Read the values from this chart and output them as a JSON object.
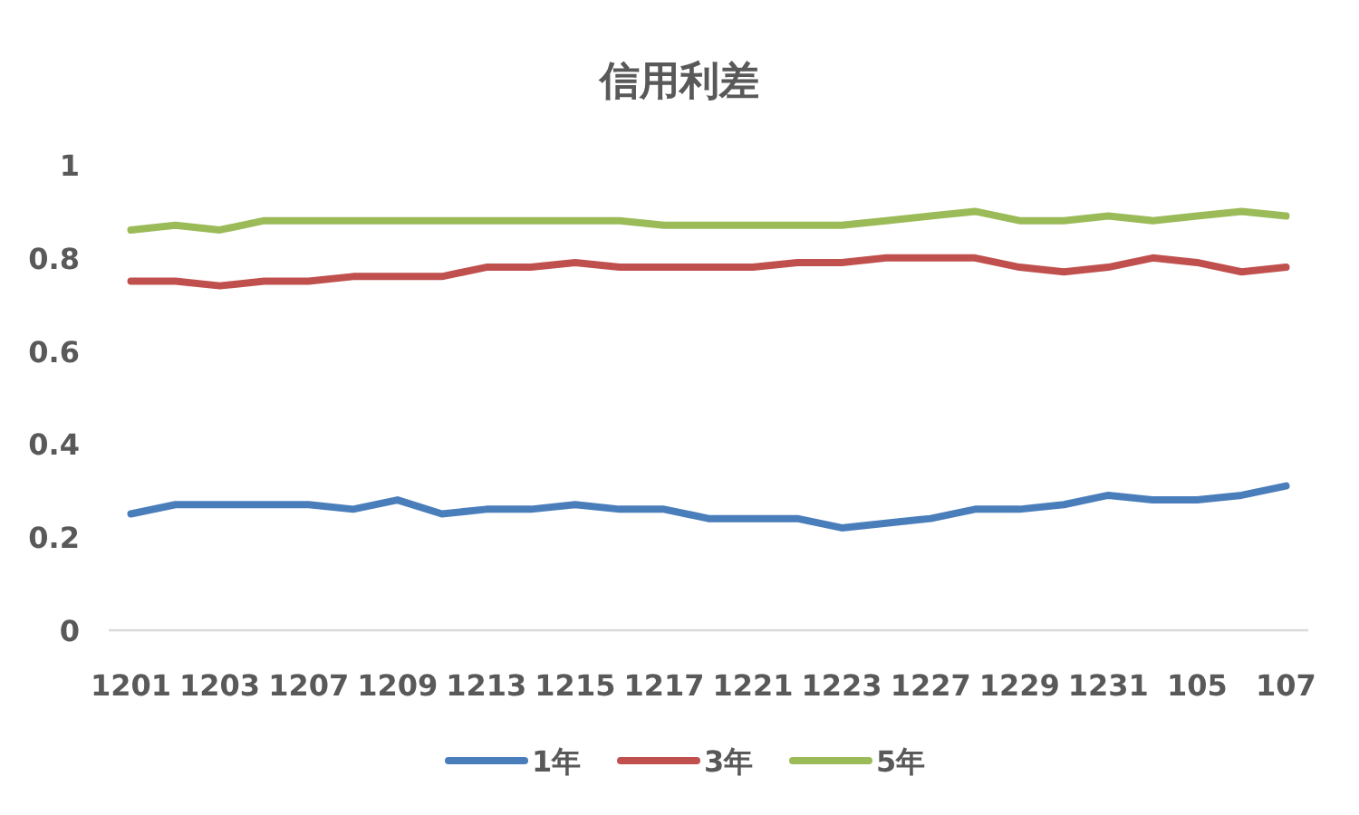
{
  "chart_data": {
    "type": "line",
    "title": "信用利差",
    "categories": [
      "1201",
      null,
      "1203",
      null,
      "1207",
      null,
      "1209",
      null,
      "1213",
      null,
      "1215",
      null,
      "1217",
      null,
      "1221",
      null,
      "1223",
      null,
      "1227",
      null,
      "1229",
      null,
      "1231",
      null,
      "105",
      null,
      "107"
    ],
    "series": [
      {
        "name": "1年",
        "color": "#4a7ebb",
        "values": [
          0.25,
          0.27,
          0.27,
          0.27,
          0.27,
          0.26,
          0.28,
          0.25,
          0.26,
          0.26,
          0.27,
          0.26,
          0.26,
          0.24,
          0.24,
          0.24,
          0.22,
          0.23,
          0.24,
          0.26,
          0.26,
          0.27,
          0.29,
          0.28,
          0.28,
          0.29,
          0.31
        ]
      },
      {
        "name": "3年",
        "color": "#c0504d",
        "values": [
          0.75,
          0.75,
          0.74,
          0.75,
          0.75,
          0.76,
          0.76,
          0.76,
          0.78,
          0.78,
          0.79,
          0.78,
          0.78,
          0.78,
          0.78,
          0.79,
          0.79,
          0.8,
          0.8,
          0.8,
          0.78,
          0.77,
          0.78,
          0.8,
          0.79,
          0.77,
          0.78
        ]
      },
      {
        "name": "5年",
        "color": "#9bbb59",
        "values": [
          0.86,
          0.87,
          0.86,
          0.88,
          0.88,
          0.88,
          0.88,
          0.88,
          0.88,
          0.88,
          0.88,
          0.88,
          0.87,
          0.87,
          0.87,
          0.87,
          0.87,
          0.88,
          0.89,
          0.9,
          0.88,
          0.88,
          0.89,
          0.88,
          0.89,
          0.9,
          0.89
        ]
      }
    ],
    "ylim": [
      0,
      1
    ],
    "yticks": [
      0,
      0.2,
      0.4,
      0.6,
      0.8,
      1
    ],
    "grid": false,
    "legend": "bottom",
    "marker": "none",
    "line_style": "solid"
  }
}
